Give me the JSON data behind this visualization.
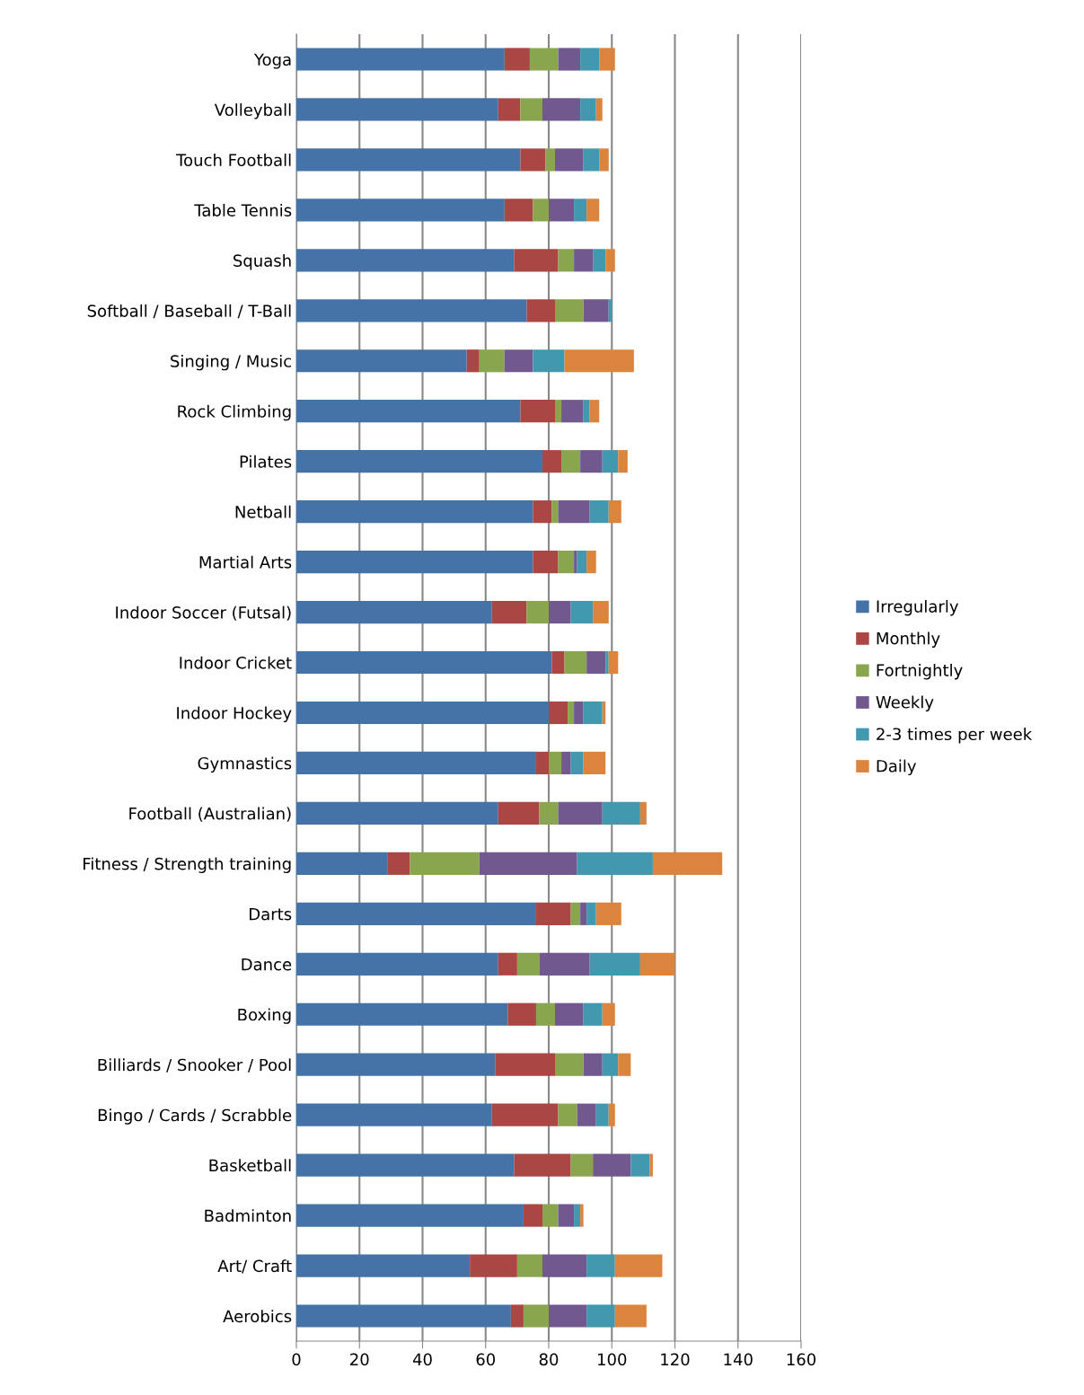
{
  "chart_data": {
    "type": "bar",
    "orientation": "horizontal",
    "stacked": true,
    "categories": [
      "Yoga",
      "Volleyball",
      "Touch Football",
      "Table Tennis",
      "Squash",
      "Softball / Baseball / T-Ball",
      "Singing / Music",
      "Rock Climbing",
      "Pilates",
      "Netball",
      "Martial Arts",
      "Indoor Soccer (Futsal)",
      "Indoor Cricket",
      "Indoor Hockey",
      "Gymnastics",
      "Football (Australian)",
      "Fitness / Strength training",
      "Darts",
      "Dance",
      "Boxing",
      "Billiards / Snooker / Pool",
      "Bingo / Cards / Scrabble",
      "Basketball",
      "Badminton",
      "Art/ Craft",
      "Aerobics"
    ],
    "series": [
      {
        "name": "Irregularly",
        "color": "#4572a7",
        "values": [
          66,
          64,
          71,
          66,
          69,
          73,
          54,
          71,
          78,
          75,
          75,
          62,
          81,
          80,
          76,
          64,
          29,
          76,
          64,
          67,
          63,
          62,
          69,
          72,
          55,
          68
        ]
      },
      {
        "name": "Monthly",
        "color": "#aa4643",
        "values": [
          8,
          7,
          8,
          9,
          14,
          9,
          4,
          11,
          6,
          6,
          8,
          11,
          4,
          6,
          4,
          13,
          7,
          11,
          6,
          9,
          19,
          21,
          18,
          6,
          15,
          4
        ]
      },
      {
        "name": "Fortnightly",
        "color": "#89a54e",
        "values": [
          9,
          7,
          3,
          5,
          5,
          9,
          8,
          2,
          6,
          2,
          5,
          7,
          7,
          2,
          4,
          6,
          22,
          3,
          7,
          6,
          9,
          6,
          7,
          5,
          8,
          8
        ]
      },
      {
        "name": "Weekly",
        "color": "#71588f",
        "values": [
          7,
          12,
          9,
          8,
          6,
          8,
          9,
          7,
          7,
          10,
          1,
          7,
          6,
          3,
          3,
          14,
          31,
          2,
          16,
          9,
          6,
          6,
          12,
          5,
          14,
          12
        ]
      },
      {
        "name": "2-3 times per week",
        "color": "#4198af",
        "values": [
          6,
          5,
          5,
          4,
          4,
          1,
          10,
          2,
          5,
          6,
          3,
          7,
          1,
          6,
          4,
          12,
          24,
          3,
          16,
          6,
          5,
          4,
          6,
          2,
          9,
          9
        ]
      },
      {
        "name": "Daily",
        "color": "#db843d",
        "values": [
          5,
          2,
          3,
          4,
          3,
          0,
          22,
          3,
          3,
          4,
          3,
          5,
          3,
          1,
          7,
          2,
          22,
          8,
          11,
          4,
          4,
          2,
          1,
          1,
          15,
          10
        ]
      }
    ],
    "xlim": [
      0,
      160
    ],
    "xticks": [
      0,
      20,
      40,
      60,
      80,
      100,
      120,
      140,
      160
    ],
    "grid": "x",
    "legend": "right"
  }
}
